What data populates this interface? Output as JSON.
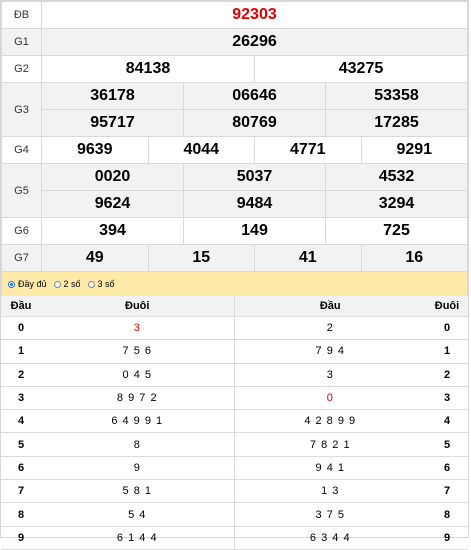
{
  "results": {
    "db": {
      "label": "ĐB",
      "values": [
        "92303"
      ]
    },
    "g1": {
      "label": "G1",
      "values": [
        "26296"
      ]
    },
    "g2": {
      "label": "G2",
      "values": [
        "84138",
        "43275"
      ]
    },
    "g3": {
      "label": "G3",
      "values": [
        "36178",
        "06646",
        "53358",
        "95717",
        "80769",
        "17285"
      ]
    },
    "g4": {
      "label": "G4",
      "values": [
        "9639",
        "4044",
        "4771",
        "9291"
      ]
    },
    "g5": {
      "label": "G5",
      "values": [
        "0020",
        "5037",
        "4532",
        "9624",
        "9484",
        "3294"
      ]
    },
    "g6": {
      "label": "G6",
      "values": [
        "394",
        "149",
        "725"
      ]
    },
    "g7": {
      "label": "G7",
      "values": [
        "49",
        "15",
        "41",
        "16"
      ]
    }
  },
  "options": {
    "full": "Đầy đủ",
    "two": "2 số",
    "three": "3 số",
    "selected": "full"
  },
  "loto": {
    "headers": {
      "dau": "Đầu",
      "duoi": "Đuôi",
      "dau2": "Đầu",
      "duoi2": "Đuôi"
    },
    "rows": [
      {
        "head": "0",
        "tails": "3",
        "heads_of": "2",
        "tail": "0"
      },
      {
        "head": "1",
        "tails": "7 5 6",
        "heads_of": "7 9 4",
        "tail": "1"
      },
      {
        "head": "2",
        "tails": "0 4 5",
        "heads_of": "3",
        "tail": "2"
      },
      {
        "head": "3",
        "tails": "8 9 7 2",
        "heads_of": "0",
        "tail": "3"
      },
      {
        "head": "4",
        "tails": "6 4 9 9 1",
        "heads_of": "4 2 8 9 9",
        "tail": "4"
      },
      {
        "head": "5",
        "tails": "8",
        "heads_of": "7 8 2 1",
        "tail": "5"
      },
      {
        "head": "6",
        "tails": "9",
        "heads_of": "9 4 1",
        "tail": "6"
      },
      {
        "head": "7",
        "tails": "5 8 1",
        "heads_of": "1 3",
        "tail": "7"
      },
      {
        "head": "8",
        "tails": "5 4",
        "heads_of": "3 7 5",
        "tail": "8"
      },
      {
        "head": "9",
        "tails": "6 1 4 4",
        "heads_of": "6 3 4 4",
        "tail": "9"
      }
    ]
  }
}
